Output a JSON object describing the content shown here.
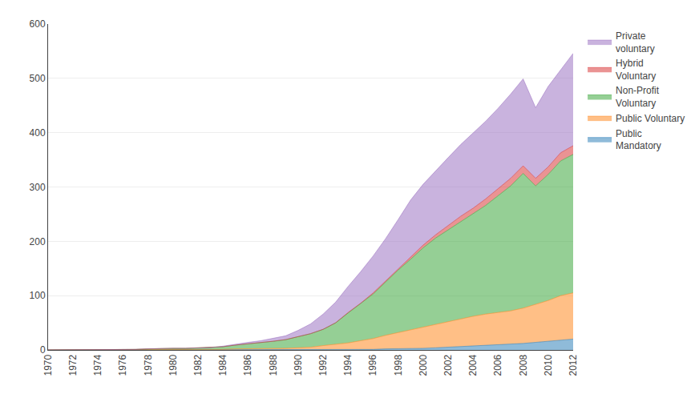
{
  "chart_data": {
    "type": "area",
    "stacked": true,
    "grid": "y",
    "legend": "right",
    "x": [
      1970,
      1971,
      1972,
      1973,
      1974,
      1975,
      1976,
      1977,
      1978,
      1979,
      1980,
      1981,
      1982,
      1983,
      1984,
      1985,
      1986,
      1987,
      1988,
      1989,
      1990,
      1991,
      1992,
      1993,
      1994,
      1995,
      1996,
      1997,
      1998,
      1999,
      2000,
      2001,
      2002,
      2003,
      2004,
      2005,
      2006,
      2007,
      2008,
      2009,
      2010,
      2011,
      2012
    ],
    "xlim": [
      1970,
      2012
    ],
    "xticks": [
      1970,
      1972,
      1974,
      1976,
      1978,
      1980,
      1982,
      1984,
      1986,
      1988,
      1990,
      1992,
      1994,
      1996,
      1998,
      2000,
      2002,
      2004,
      2006,
      2008,
      2010,
      2012
    ],
    "ylim": [
      0,
      600
    ],
    "yticks": [
      0,
      100,
      200,
      300,
      400,
      500,
      600
    ],
    "series": [
      {
        "name": "Public\nMandatory",
        "values": [
          0,
          0,
          0,
          0,
          0,
          0,
          0,
          0,
          0,
          0,
          0,
          0,
          0,
          0,
          0,
          0,
          0,
          0,
          0,
          0,
          0,
          0,
          1,
          1,
          1,
          1,
          1,
          2,
          2,
          2,
          3,
          4,
          5,
          6,
          7,
          8,
          9,
          10,
          12,
          14,
          16,
          18,
          20
        ]
      },
      {
        "name": "Public Voluntary",
        "values": [
          0,
          0,
          0,
          0,
          0,
          0,
          0,
          0,
          0,
          1,
          1,
          1,
          1,
          1,
          1,
          2,
          2,
          2,
          3,
          3,
          4,
          5,
          7,
          9,
          12,
          16,
          20,
          25,
          30,
          35,
          40,
          44,
          48,
          52,
          55,
          58,
          60,
          62,
          65,
          70,
          75,
          82,
          85
        ]
      },
      {
        "name": "Non-Profit\nVoluntary",
        "values": [
          0,
          0,
          1,
          1,
          1,
          1,
          1,
          1,
          2,
          2,
          2,
          2,
          3,
          3,
          5,
          7,
          9,
          11,
          13,
          16,
          20,
          25,
          30,
          40,
          55,
          68,
          82,
          98,
          115,
          130,
          145,
          158,
          168,
          178,
          188,
          200,
          215,
          230,
          248,
          218,
          232,
          248,
          255
        ]
      },
      {
        "name": "Hybrid\nVoluntary",
        "values": [
          0,
          0,
          0,
          0,
          0,
          0,
          0,
          0,
          0,
          0,
          0,
          0,
          0,
          0,
          0,
          0,
          0,
          0,
          0,
          0,
          0,
          0,
          0,
          0,
          1,
          1,
          2,
          2,
          3,
          4,
          5,
          6,
          8,
          10,
          11,
          12,
          13,
          14,
          14,
          14,
          14,
          15,
          16
        ]
      },
      {
        "name": "Private\nvoluntary",
        "values": [
          0,
          0,
          0,
          0,
          0,
          0,
          0,
          0,
          0,
          0,
          0,
          0,
          0,
          0,
          1,
          2,
          3,
          4,
          5,
          7,
          12,
          18,
          28,
          38,
          48,
          58,
          68,
          78,
          90,
          105,
          112,
          118,
          125,
          132,
          138,
          143,
          148,
          155,
          160,
          130,
          148,
          152,
          170
        ]
      }
    ]
  }
}
